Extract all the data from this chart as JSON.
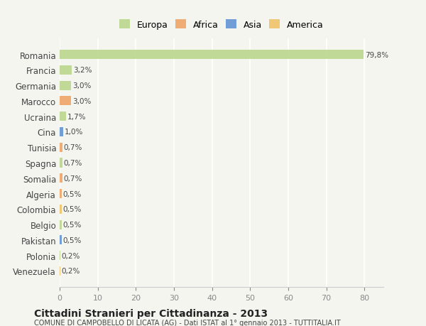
{
  "categories": [
    "Venezuela",
    "Polonia",
    "Pakistan",
    "Belgio",
    "Colombia",
    "Algeria",
    "Somalia",
    "Spagna",
    "Tunisia",
    "Cina",
    "Ucraina",
    "Marocco",
    "Germania",
    "Francia",
    "Romania"
  ],
  "values": [
    0.2,
    0.2,
    0.5,
    0.5,
    0.5,
    0.5,
    0.7,
    0.7,
    0.7,
    1.0,
    1.7,
    3.0,
    3.0,
    3.2,
    79.8
  ],
  "labels": [
    "0,2%",
    "0,2%",
    "0,5%",
    "0,5%",
    "0,5%",
    "0,5%",
    "0,7%",
    "0,7%",
    "0,7%",
    "1,0%",
    "1,7%",
    "3,0%",
    "3,0%",
    "3,2%",
    "79,8%"
  ],
  "colors": [
    "#f0c060",
    "#b8d488",
    "#5b8fd4",
    "#b8d488",
    "#f0c060",
    "#f0a060",
    "#f0a060",
    "#b8d488",
    "#f0a060",
    "#5b8fd4",
    "#b8d488",
    "#f0a060",
    "#b8d488",
    "#b8d488",
    "#b8d488"
  ],
  "legend_labels": [
    "Europa",
    "Africa",
    "Asia",
    "America"
  ],
  "legend_colors": [
    "#b8d488",
    "#f0a060",
    "#5b8fd4",
    "#f0c060"
  ],
  "title": "Cittadini Stranieri per Cittadinanza - 2013",
  "subtitle": "COMUNE DI CAMPOBELLO DI LICATA (AG) - Dati ISTAT al 1° gennaio 2013 - TUTTITALIA.IT",
  "xlim": [
    0,
    85
  ],
  "xticks": [
    0,
    10,
    20,
    30,
    40,
    50,
    60,
    70,
    80
  ],
  "bg_color": "#f5f5f0",
  "grid_color": "#ffffff",
  "bar_height": 0.6
}
